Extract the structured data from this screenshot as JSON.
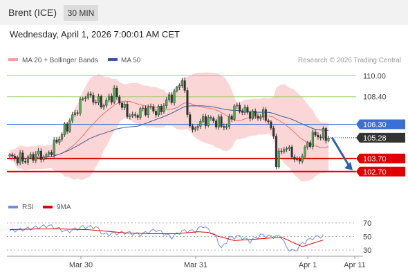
{
  "header": {
    "instrument": "Brent (ICE)",
    "timeframe": "30 MIN",
    "datetime": "Wednesday, April 1, 2026 7:00:01 AM CET"
  },
  "colors": {
    "bollinger": "#f4a3a3",
    "ma20": "#f07070",
    "ma50": "#3b5998",
    "resistance": "#9ccc65",
    "support": "#e00000",
    "pivot": "#3b6fd6",
    "last_price": "#333333",
    "arrow": "#2e5fa8",
    "rsi": "#6c8ede",
    "rsi_ma": "#e00000"
  },
  "chart_data": [
    {
      "type": "candlestick",
      "title": "",
      "legend": [
        {
          "label": "MA 20 + Bollinger Bands",
          "color": "#f07070"
        },
        {
          "label": "MA 50",
          "color": "#3b5998"
        }
      ],
      "credit": "Research © 2026 Trading Central",
      "ylim": [
        101.0,
        110.6
      ],
      "x_ticks": [
        "Mar 30",
        "Mar 31",
        "Apr 1",
        "Apr 11"
      ],
      "levels": [
        {
          "value": 110.0,
          "label": "110.00",
          "kind": "resistance"
        },
        {
          "value": 108.4,
          "label": "108.40",
          "kind": "resistance"
        },
        {
          "value": 106.3,
          "label": "106.30",
          "kind": "pivot"
        },
        {
          "value": 103.7,
          "label": "103.70",
          "kind": "support"
        },
        {
          "value": 102.7,
          "label": "102.70",
          "kind": "support"
        }
      ],
      "last_price": {
        "value": 105.28,
        "label": "105.28"
      },
      "forecast": {
        "from": 105.3,
        "to": 102.8
      }
    },
    {
      "type": "line",
      "title": "",
      "legend": [
        {
          "label": "RSI",
          "color": "#6c8ede"
        },
        {
          "label": "9MA",
          "color": "#e00000"
        }
      ],
      "ylim": [
        25,
        80
      ],
      "y_ticks": [
        {
          "value": 70,
          "label": "70"
        },
        {
          "value": 50,
          "label": "50"
        },
        {
          "value": 30,
          "label": "30"
        }
      ],
      "rsi_anchors": [
        [
          0,
          58
        ],
        [
          8,
          62
        ],
        [
          15,
          66
        ],
        [
          22,
          57
        ],
        [
          28,
          64
        ],
        [
          33,
          64
        ],
        [
          36,
          53
        ],
        [
          44,
          56
        ],
        [
          50,
          53
        ],
        [
          56,
          60
        ],
        [
          62,
          49
        ],
        [
          66,
          58
        ],
        [
          71,
          58
        ],
        [
          74,
          66
        ],
        [
          76,
          60
        ],
        [
          79,
          50
        ],
        [
          81,
          32
        ],
        [
          84,
          48
        ],
        [
          88,
          50
        ],
        [
          92,
          43
        ],
        [
          96,
          52
        ],
        [
          100,
          50
        ],
        [
          104,
          50
        ],
        [
          106,
          33
        ],
        [
          109,
          28
        ],
        [
          112,
          40
        ],
        [
          116,
          48
        ],
        [
          121,
          52
        ],
        [
          125,
          50
        ]
      ],
      "ma_anchors": [
        [
          0,
          60
        ],
        [
          10,
          61
        ],
        [
          20,
          61
        ],
        [
          30,
          60
        ],
        [
          36,
          58
        ],
        [
          45,
          55
        ],
        [
          56,
          54
        ],
        [
          64,
          54
        ],
        [
          72,
          57
        ],
        [
          76,
          56
        ],
        [
          80,
          50
        ],
        [
          86,
          44
        ],
        [
          94,
          46
        ],
        [
          104,
          49
        ],
        [
          108,
          42
        ],
        [
          112,
          35
        ],
        [
          116,
          40
        ],
        [
          121,
          46
        ],
        [
          125,
          49
        ]
      ]
    }
  ]
}
